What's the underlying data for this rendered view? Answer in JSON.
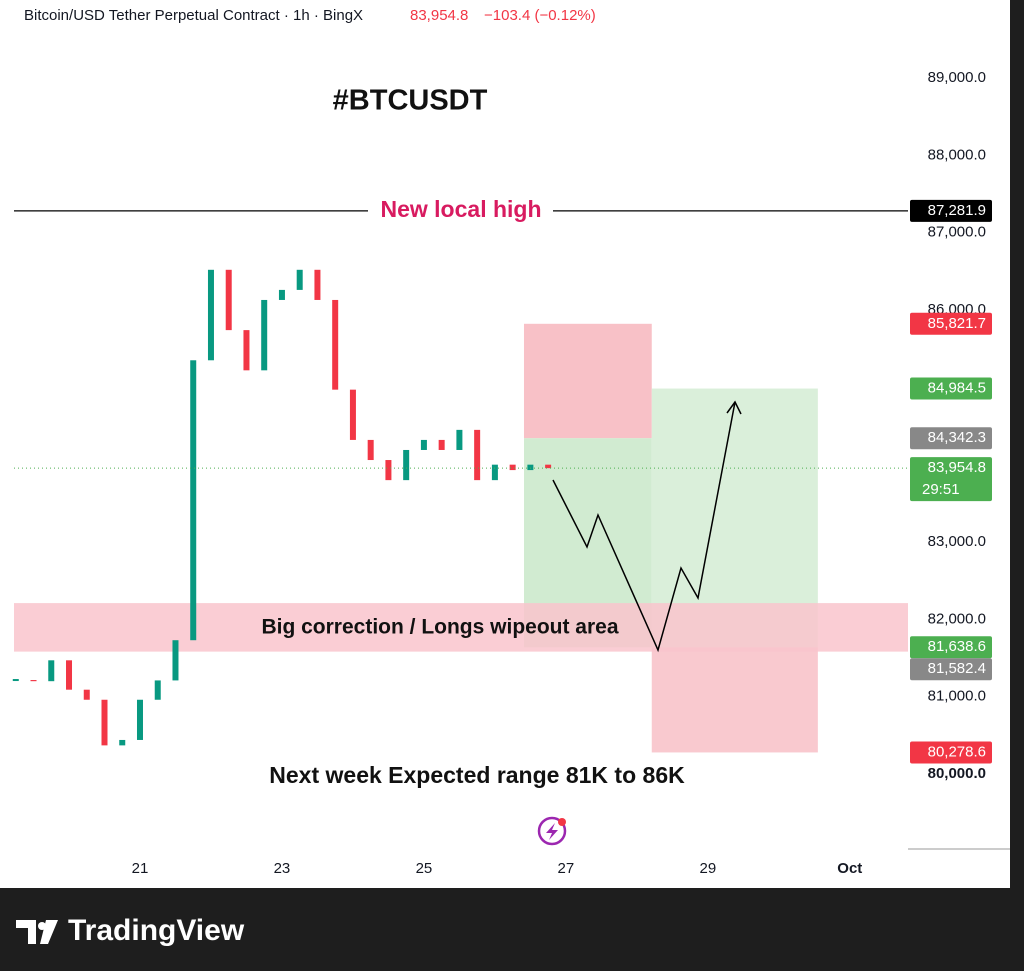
{
  "chart_data": {
    "type": "candlestick",
    "header": {
      "symbol": "Bitcoin/USD Tether Perpetual Contract · 1h · BingX",
      "price": "83,954.8",
      "change": "−103.4 (−0.12%)"
    },
    "title": "#BTCUSDT",
    "annotations": {
      "high": "New local high",
      "zone": "Big correction / Longs wipeout area",
      "range": "Next week Expected range 81K to 86K"
    },
    "brand": "TradingView",
    "x": [
      19.25,
      19.5,
      19.75,
      20,
      20.25,
      20.5,
      20.75,
      21,
      21.25,
      21.5,
      21.75,
      22,
      22.25,
      22.5,
      22.75,
      23,
      23.25,
      23.5,
      23.75,
      24,
      24.25,
      24.5,
      24.75,
      25,
      25.25,
      25.5,
      25.75,
      26,
      26.25,
      26.5,
      26.75
    ],
    "series": [
      {
        "name": "BTCUSDT",
        "up_color": "#089981",
        "down_color": "#f23645",
        "values": [
          81215,
          81200,
          81470,
          81090,
          80960,
          80370,
          80440,
          80960,
          81210,
          81730,
          85350,
          86520,
          85740,
          85220,
          86130,
          86260,
          86520,
          86130,
          84970,
          84320,
          84060,
          83800,
          84190,
          84320,
          84190,
          84450,
          83800,
          84000,
          83930,
          84000,
          83955
        ]
      }
    ],
    "xlim": [
      19.225,
      31.82
    ],
    "ylim": [
      79017,
      90009
    ],
    "xticks": [
      21,
      23,
      25,
      27,
      29,
      {
        "value": 31,
        "label": "Oct"
      }
    ],
    "yticks": [
      {
        "value": 80000,
        "label": "80,000.0"
      },
      {
        "value": 81000,
        "label": "81,000.0"
      },
      {
        "value": 82000,
        "label": "82,000.0"
      },
      {
        "value": 83000,
        "label": "83,000.0"
      },
      {
        "value": 86000,
        "label": "86,000.0"
      },
      {
        "value": 87000,
        "label": "87,000.0"
      },
      {
        "value": 88000,
        "label": "88,000.0"
      },
      {
        "value": 89000,
        "label": "89,000.0"
      }
    ],
    "zones": [
      {
        "x0": 26.41,
        "x1": 28.21,
        "y0": 84342.3,
        "y1": 85821.7,
        "color": "#f7b6bd"
      },
      {
        "x0": 26.41,
        "x1": 28.21,
        "y0": 81638.6,
        "y1": 84342.3,
        "color": "#c9e8c9"
      },
      {
        "x0": 28.21,
        "x1": 30.55,
        "y0": 81638.6,
        "y1": 84984.5,
        "color": "#d3ecd3"
      },
      {
        "x0": 28.21,
        "x1": 30.55,
        "y0": 80278.6,
        "y1": 81638.6,
        "color": "#f8c0c7"
      },
      {
        "x0": 19.225,
        "x1": 31.82,
        "y0": 81582.4,
        "y1": 82210,
        "color": "#f9c4cc"
      }
    ],
    "high_line": 87281.9,
    "price_labels": [
      {
        "value": 87281.9,
        "label": "87,281.9",
        "color": "#000000"
      },
      {
        "value": 85821.7,
        "label": "85,821.7",
        "color": "#f23645"
      },
      {
        "value": 84984.5,
        "label": "84,984.5",
        "color": "#4caf50"
      },
      {
        "value": 84342.3,
        "label": "84,342.3",
        "color": "#888888"
      },
      {
        "value": 83954.8,
        "label": "83,954.8",
        "color": "#4caf50",
        "countdown": "29:51"
      },
      {
        "value": 81638.6,
        "label": "81,638.6",
        "color": "#4caf50"
      },
      {
        "value": 81582.4,
        "label": "81,582.4",
        "color": "#888888"
      },
      {
        "value": 80278.6,
        "label": "80,278.6",
        "color": "#f23645"
      }
    ]
  }
}
